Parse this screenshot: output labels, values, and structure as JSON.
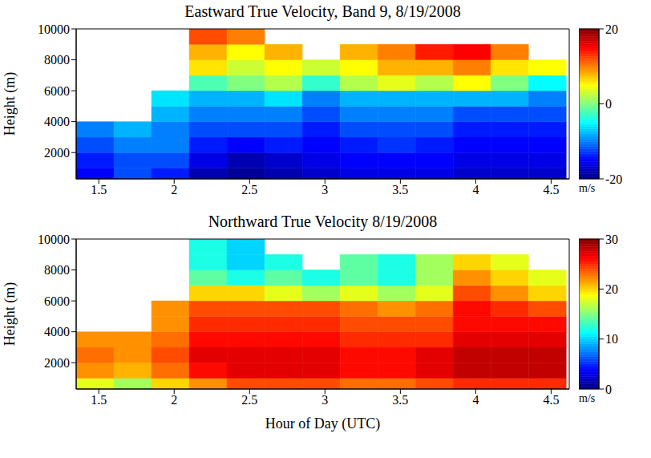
{
  "chart_data": [
    {
      "type": "heatmap",
      "title": "Eastward True Velocity, Band 9, 8/19/2008",
      "y_label": "Height (m)",
      "xlim": [
        1.35,
        4.62
      ],
      "xticks": [
        1.5,
        2,
        2.5,
        3,
        3.5,
        4,
        4.5
      ],
      "ylim": [
        300,
        10000
      ],
      "yticks": [
        2000,
        4000,
        6000,
        8000,
        10000
      ],
      "x_edges": [
        1.35,
        1.6,
        1.85,
        2.1,
        2.35,
        2.6,
        2.85,
        3.1,
        3.35,
        3.6,
        3.85,
        4.1,
        4.35,
        4.6
      ],
      "y_edges": [
        300,
        1000,
        2000,
        3000,
        4000,
        5000,
        6000,
        7000,
        8000,
        9000,
        10000
      ],
      "cells": [
        [
          -15,
          -12,
          -14,
          -18,
          -19,
          -18,
          -17,
          -16,
          -16,
          -16,
          -17,
          -17,
          -17
        ],
        [
          -14,
          -12,
          -12,
          -16,
          -18,
          -17,
          -16,
          -15,
          -15,
          -15,
          -16,
          -16,
          -16
        ],
        [
          -12,
          -10,
          -10,
          -14,
          -15,
          -14,
          -15,
          -14,
          -13,
          -14,
          -15,
          -15,
          -15
        ],
        [
          -10,
          -8,
          -10,
          -12,
          -12,
          -12,
          -14,
          -12,
          -12,
          -12,
          -14,
          -14,
          -14
        ],
        [
          null,
          null,
          -8,
          -10,
          -10,
          -10,
          -12,
          -10,
          -10,
          -10,
          -12,
          -12,
          -12
        ],
        [
          null,
          null,
          -6,
          -8,
          -8,
          -6,
          -10,
          -8,
          -8,
          -8,
          -8,
          -8,
          -10
        ],
        [
          null,
          null,
          null,
          -2,
          0,
          2,
          -3,
          2,
          4,
          2,
          5,
          0,
          -5
        ],
        [
          null,
          null,
          null,
          6,
          3,
          5,
          3,
          5,
          8,
          8,
          10,
          6,
          5
        ],
        [
          null,
          null,
          null,
          8,
          5,
          8,
          null,
          8,
          10,
          14,
          15,
          10,
          null
        ],
        [
          null,
          null,
          null,
          12,
          10,
          null,
          null,
          null,
          null,
          null,
          null,
          null,
          null
        ]
      ],
      "colorbar_range": [
        -20,
        20
      ],
      "colorbar_ticks": [
        -20,
        0,
        20
      ],
      "colorbar_label": "m/s"
    },
    {
      "type": "heatmap",
      "title": "Northward True Velocity 8/19/2008",
      "y_label": "Height (m)",
      "x_label": "Hour of Day (UTC)",
      "xlim": [
        1.35,
        4.62
      ],
      "xticks": [
        1.5,
        2,
        2.5,
        3,
        3.5,
        4,
        4.5
      ],
      "ylim": [
        300,
        10000
      ],
      "yticks": [
        2000,
        4000,
        6000,
        8000,
        10000
      ],
      "x_edges": [
        1.35,
        1.6,
        1.85,
        2.1,
        2.35,
        2.6,
        2.85,
        3.1,
        3.35,
        3.6,
        3.85,
        4.1,
        4.35,
        4.6
      ],
      "y_edges": [
        300,
        1000,
        2000,
        3000,
        4000,
        5000,
        6000,
        7000,
        8000,
        9000,
        10000
      ],
      "cells": [
        [
          18,
          16,
          20,
          22,
          24,
          24,
          24,
          23,
          23,
          24,
          25,
          25,
          25
        ],
        [
          22,
          21,
          23,
          26,
          27,
          27,
          27,
          26,
          26,
          27,
          28,
          28,
          28
        ],
        [
          23,
          22,
          24,
          27,
          27,
          27,
          27,
          26,
          26,
          27,
          28,
          28,
          28
        ],
        [
          22,
          22,
          23,
          26,
          26,
          26,
          26,
          25,
          25,
          25,
          27,
          27,
          27
        ],
        [
          null,
          null,
          22,
          25,
          25,
          25,
          25,
          24,
          24,
          24,
          26,
          26,
          26
        ],
        [
          null,
          null,
          22,
          24,
          24,
          24,
          24,
          23,
          22,
          23,
          26,
          25,
          24
        ],
        [
          null,
          null,
          null,
          20,
          20,
          18,
          16,
          18,
          16,
          18,
          24,
          22,
          20
        ],
        [
          null,
          null,
          null,
          14,
          12,
          14,
          12,
          14,
          12,
          16,
          22,
          20,
          18
        ],
        [
          null,
          null,
          null,
          12,
          10,
          12,
          null,
          14,
          12,
          16,
          20,
          18,
          null
        ],
        [
          null,
          null,
          null,
          12,
          10,
          null,
          null,
          null,
          null,
          null,
          null,
          null,
          null
        ]
      ],
      "colorbar_range": [
        0,
        30
      ],
      "colorbar_ticks": [
        0,
        10,
        20,
        30
      ],
      "colorbar_label": "m/s"
    }
  ]
}
